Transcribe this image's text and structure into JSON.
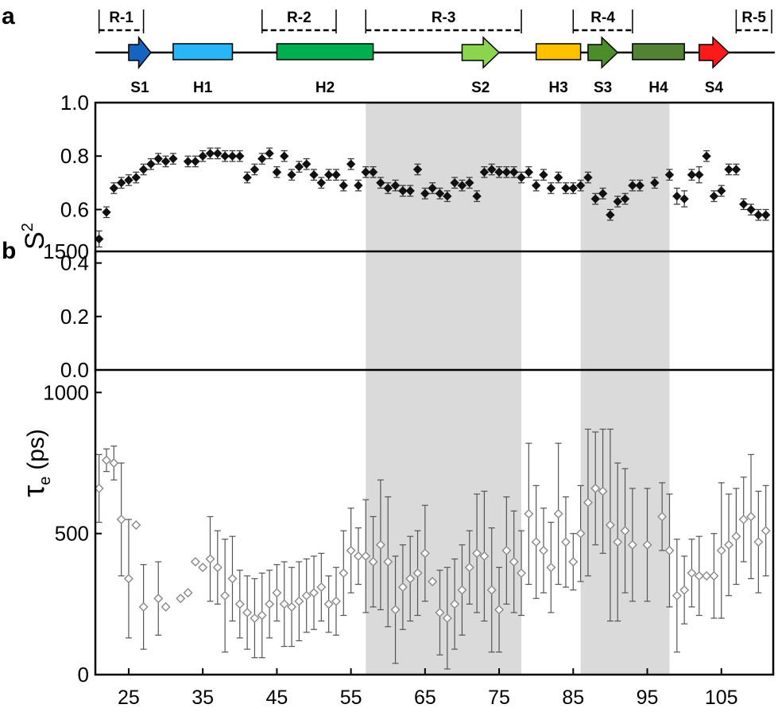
{
  "panel_labels": {
    "a": "a",
    "b": "b"
  },
  "topology": {
    "regions": [
      {
        "label": "R-1",
        "start": 21,
        "end": 27
      },
      {
        "label": "R-2",
        "start": 43,
        "end": 53
      },
      {
        "label": "R-3",
        "start": 57,
        "end": 78
      },
      {
        "label": "R-4",
        "start": 85,
        "end": 93
      },
      {
        "label": "R-5",
        "start": 107,
        "end": 112
      }
    ],
    "elements": [
      {
        "label": "S1",
        "kind": "strand",
        "start": 25,
        "end": 28,
        "color": "#1565c0"
      },
      {
        "label": "H1",
        "kind": "helix",
        "start": 31,
        "end": 39,
        "color": "#29b6f6"
      },
      {
        "label": "H2",
        "kind": "helix",
        "start": 45,
        "end": 58,
        "color": "#00b050"
      },
      {
        "label": "S2",
        "kind": "strand",
        "start": 70,
        "end": 75,
        "color": "#8bd450"
      },
      {
        "label": "H3",
        "kind": "helix",
        "start": 80,
        "end": 86,
        "color": "#ffc000"
      },
      {
        "label": "S3",
        "kind": "strand",
        "start": 87,
        "end": 91,
        "color": "#4c8c2b"
      },
      {
        "label": "H4",
        "kind": "helix",
        "start": 93,
        "end": 100,
        "color": "#548235"
      },
      {
        "label": "S4",
        "kind": "strand",
        "start": 102,
        "end": 106,
        "color": "#ff1a1a"
      }
    ]
  },
  "chart_data": [
    {
      "type": "scatter",
      "ylabel": "S2",
      "ylabel_main": "S",
      "ylabel_sup": "2",
      "xlim": [
        20.5,
        112
      ],
      "ylim": [
        0,
        1
      ],
      "yticks": [
        "0.0",
        "0.2",
        "0.4",
        "0.6",
        "0.8",
        "1.0"
      ],
      "grid": false,
      "shaded_ranges": [
        [
          57,
          78
        ],
        [
          86,
          98
        ]
      ],
      "marker": "filled-diamond",
      "marker_color": "#111111",
      "points": [
        [
          21,
          0.49,
          0.03
        ],
        [
          22,
          0.59,
          0.02
        ],
        [
          23,
          0.68,
          0.02
        ],
        [
          24,
          0.7,
          0.02
        ],
        [
          25,
          0.71,
          0.02
        ],
        [
          26,
          0.72,
          0.02
        ],
        [
          27,
          0.75,
          0.02
        ],
        [
          28,
          0.77,
          0.02
        ],
        [
          29,
          0.79,
          0.02
        ],
        [
          30,
          0.78,
          0.02
        ],
        [
          31,
          0.79,
          0.02
        ],
        [
          33,
          0.78,
          0.02
        ],
        [
          34,
          0.78,
          0.02
        ],
        [
          35,
          0.8,
          0.02
        ],
        [
          36,
          0.81,
          0.02
        ],
        [
          37,
          0.81,
          0.02
        ],
        [
          38,
          0.8,
          0.02
        ],
        [
          39,
          0.8,
          0.02
        ],
        [
          40,
          0.8,
          0.02
        ],
        [
          41,
          0.72,
          0.02
        ],
        [
          42,
          0.75,
          0.02
        ],
        [
          43,
          0.79,
          0.02
        ],
        [
          44,
          0.81,
          0.02
        ],
        [
          45,
          0.74,
          0.02
        ],
        [
          46,
          0.8,
          0.02
        ],
        [
          47,
          0.73,
          0.02
        ],
        [
          48,
          0.76,
          0.02
        ],
        [
          49,
          0.77,
          0.02
        ],
        [
          50,
          0.73,
          0.02
        ],
        [
          51,
          0.7,
          0.02
        ],
        [
          52,
          0.73,
          0.02
        ],
        [
          53,
          0.73,
          0.02
        ],
        [
          54,
          0.69,
          0.02
        ],
        [
          55,
          0.77,
          0.02
        ],
        [
          56,
          0.69,
          0.02
        ],
        [
          57,
          0.74,
          0.02
        ],
        [
          58,
          0.74,
          0.02
        ],
        [
          59,
          0.7,
          0.02
        ],
        [
          60,
          0.68,
          0.02
        ],
        [
          61,
          0.69,
          0.02
        ],
        [
          62,
          0.67,
          0.02
        ],
        [
          63,
          0.67,
          0.02
        ],
        [
          64,
          0.75,
          0.02
        ],
        [
          65,
          0.66,
          0.02
        ],
        [
          66,
          0.68,
          0.02
        ],
        [
          67,
          0.66,
          0.02
        ],
        [
          68,
          0.65,
          0.02
        ],
        [
          69,
          0.7,
          0.02
        ],
        [
          70,
          0.69,
          0.02
        ],
        [
          71,
          0.7,
          0.02
        ],
        [
          72,
          0.65,
          0.02
        ],
        [
          73,
          0.74,
          0.02
        ],
        [
          74,
          0.75,
          0.02
        ],
        [
          75,
          0.74,
          0.02
        ],
        [
          76,
          0.74,
          0.02
        ],
        [
          77,
          0.74,
          0.02
        ],
        [
          78,
          0.72,
          0.02
        ],
        [
          79,
          0.74,
          0.02
        ],
        [
          80,
          0.69,
          0.02
        ],
        [
          81,
          0.73,
          0.02
        ],
        [
          82,
          0.68,
          0.02
        ],
        [
          83,
          0.72,
          0.02
        ],
        [
          84,
          0.68,
          0.02
        ],
        [
          85,
          0.68,
          0.02
        ],
        [
          86,
          0.69,
          0.02
        ],
        [
          87,
          0.72,
          0.02
        ],
        [
          88,
          0.64,
          0.02
        ],
        [
          89,
          0.66,
          0.02
        ],
        [
          90,
          0.58,
          0.02
        ],
        [
          91,
          0.63,
          0.02
        ],
        [
          92,
          0.64,
          0.02
        ],
        [
          93,
          0.69,
          0.02
        ],
        [
          94,
          0.69,
          0.02
        ],
        [
          96,
          0.7,
          0.02
        ],
        [
          98,
          0.73,
          0.02
        ],
        [
          99,
          0.65,
          0.03
        ],
        [
          100,
          0.64,
          0.03
        ],
        [
          101,
          0.73,
          0.02
        ],
        [
          102,
          0.73,
          0.03
        ],
        [
          103,
          0.8,
          0.02
        ],
        [
          104,
          0.65,
          0.02
        ],
        [
          105,
          0.67,
          0.02
        ],
        [
          106,
          0.75,
          0.02
        ],
        [
          107,
          0.75,
          0.02
        ],
        [
          108,
          0.62,
          0.02
        ],
        [
          109,
          0.6,
          0.02
        ],
        [
          110,
          0.58,
          0.02
        ],
        [
          111,
          0.58,
          0.02
        ]
      ]
    },
    {
      "type": "scatter",
      "ylabel": "τe (ps)",
      "ylabel_main": "τ",
      "ylabel_sub": "e",
      "ylabel_unit": "(ps)",
      "xlim": [
        20.5,
        112
      ],
      "ylim": [
        0,
        1500
      ],
      "yticks": [
        "0",
        "500",
        "1000",
        "1500"
      ],
      "xticks": [
        "25",
        "35",
        "45",
        "55",
        "65",
        "75",
        "85",
        "95",
        "105"
      ],
      "grid": false,
      "shaded_ranges": [
        [
          57,
          78
        ],
        [
          86,
          98
        ]
      ],
      "marker": "open-diamond",
      "marker_color": "#888888",
      "points": [
        [
          21,
          660,
          120
        ],
        [
          22,
          760,
          40
        ],
        [
          23,
          750,
          60
        ],
        [
          24,
          550,
          200
        ],
        [
          25,
          340,
          210
        ],
        [
          26,
          530,
          0
        ],
        [
          27,
          240,
          150
        ],
        [
          29,
          270,
          130
        ],
        [
          30,
          240,
          0
        ],
        [
          32,
          270,
          0
        ],
        [
          33,
          290,
          0
        ],
        [
          34,
          400,
          0
        ],
        [
          35,
          380,
          0
        ],
        [
          36,
          410,
          150
        ],
        [
          37,
          380,
          130
        ],
        [
          38,
          280,
          200
        ],
        [
          39,
          340,
          150
        ],
        [
          40,
          250,
          120
        ],
        [
          41,
          220,
          130
        ],
        [
          42,
          200,
          140
        ],
        [
          43,
          210,
          150
        ],
        [
          44,
          250,
          120
        ],
        [
          45,
          290,
          100
        ],
        [
          46,
          250,
          150
        ],
        [
          47,
          240,
          140
        ],
        [
          48,
          260,
          140
        ],
        [
          49,
          280,
          130
        ],
        [
          50,
          290,
          130
        ],
        [
          51,
          310,
          120
        ],
        [
          52,
          250,
          100
        ],
        [
          53,
          260,
          120
        ],
        [
          54,
          360,
          150
        ],
        [
          55,
          440,
          150
        ],
        [
          56,
          420,
          100
        ],
        [
          57,
          420,
          200
        ],
        [
          58,
          400,
          160
        ],
        [
          59,
          460,
          230
        ],
        [
          60,
          400,
          230
        ],
        [
          61,
          230,
          190
        ],
        [
          62,
          310,
          150
        ],
        [
          63,
          340,
          150
        ],
        [
          64,
          360,
          150
        ],
        [
          65,
          430,
          170
        ],
        [
          66,
          330,
          0
        ],
        [
          67,
          220,
          150
        ],
        [
          68,
          200,
          180
        ],
        [
          69,
          250,
          160
        ],
        [
          70,
          300,
          160
        ],
        [
          71,
          380,
          130
        ],
        [
          72,
          430,
          210
        ],
        [
          73,
          420,
          230
        ],
        [
          74,
          300,
          220
        ],
        [
          75,
          230,
          150
        ],
        [
          76,
          440,
          190
        ],
        [
          77,
          400,
          180
        ],
        [
          78,
          360,
          150
        ],
        [
          79,
          570,
          250
        ],
        [
          80,
          470,
          200
        ],
        [
          81,
          440,
          150
        ],
        [
          82,
          380,
          160
        ],
        [
          83,
          570,
          250
        ],
        [
          84,
          470,
          160
        ],
        [
          85,
          400,
          100
        ],
        [
          86,
          500,
          170
        ],
        [
          87,
          610,
          260
        ],
        [
          88,
          660,
          200
        ],
        [
          89,
          650,
          220
        ],
        [
          90,
          530,
          340
        ],
        [
          91,
          470,
          280
        ],
        [
          92,
          510,
          220
        ],
        [
          93,
          460,
          200
        ],
        [
          95,
          460,
          200
        ],
        [
          97,
          560,
          120
        ],
        [
          98,
          440,
          200
        ],
        [
          99,
          280,
          200
        ],
        [
          100,
          300,
          120
        ],
        [
          101,
          360,
          120
        ],
        [
          102,
          350,
          140
        ],
        [
          103,
          350,
          0
        ],
        [
          104,
          350,
          150
        ],
        [
          105,
          440,
          240
        ],
        [
          106,
          460,
          180
        ],
        [
          107,
          490,
          170
        ],
        [
          108,
          550,
          150
        ],
        [
          109,
          560,
          220
        ],
        [
          110,
          470,
          180
        ],
        [
          111,
          510,
          160
        ]
      ]
    }
  ]
}
